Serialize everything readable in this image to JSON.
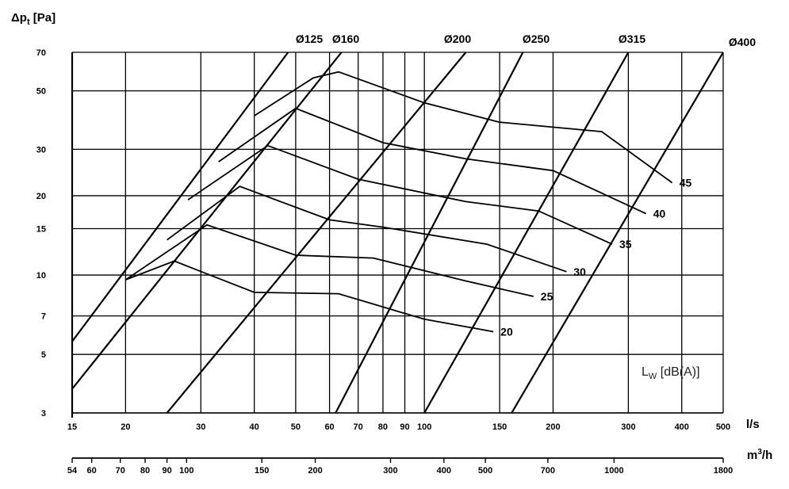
{
  "chart_data": {
    "type": "line",
    "title": "",
    "ylabel": "Δp",
    "ylabel_sub": "t",
    "ylabel_unit": "[Pa]",
    "xlabel": "l/s",
    "x2label": "m",
    "x2label_sup": "3",
    "x2label_unit": "/h",
    "xscale": "log",
    "yscale": "log",
    "xlim": [
      15,
      500
    ],
    "ylim": [
      3,
      70
    ],
    "grid": true,
    "x_ticks": [
      15,
      20,
      30,
      40,
      50,
      60,
      70,
      80,
      90,
      100,
      150,
      200,
      300,
      400,
      500
    ],
    "x2_ticks": [
      54,
      60,
      70,
      80,
      90,
      100,
      150,
      200,
      300,
      400,
      500,
      700,
      1000,
      1800
    ],
    "y_ticks": [
      3,
      5,
      7,
      10,
      15,
      20,
      30,
      50,
      70
    ],
    "note": "L",
    "note_sub": "W",
    "note_unit": "[dB(A)]",
    "duct_lines": [
      {
        "name": "Ø125",
        "points": [
          [
            15,
            5.6
          ],
          [
            48,
            70
          ]
        ]
      },
      {
        "name": "Ø160",
        "points": [
          [
            15,
            3.7
          ],
          [
            64,
            70
          ]
        ]
      },
      {
        "name": "Ø200",
        "points": [
          [
            25,
            3.0
          ],
          [
            125,
            70
          ]
        ]
      },
      {
        "name": "Ø250",
        "points": [
          [
            62,
            3.0
          ],
          [
            170,
            70
          ]
        ]
      },
      {
        "name": "Ø315",
        "points": [
          [
            100,
            3.0
          ],
          [
            300,
            70
          ]
        ]
      },
      {
        "name": "Ø400",
        "points": [
          [
            160,
            3.0
          ],
          [
            500,
            70
          ]
        ]
      }
    ],
    "series": [
      {
        "name": "20",
        "points": [
          [
            20,
            9.6
          ],
          [
            26,
            11.3
          ],
          [
            40,
            8.6
          ],
          [
            63,
            8.5
          ],
          [
            100,
            6.8
          ],
          [
            145,
            6.1
          ]
        ]
      },
      {
        "name": "25",
        "points": [
          [
            20,
            9.6
          ],
          [
            31,
            15.5
          ],
          [
            50,
            11.9
          ],
          [
            76,
            11.6
          ],
          [
            125,
            9.5
          ],
          [
            180,
            8.3
          ]
        ]
      },
      {
        "name": "30",
        "points": [
          [
            25,
            13.6
          ],
          [
            37,
            21.7
          ],
          [
            60,
            16.2
          ],
          [
            80,
            15.2
          ],
          [
            140,
            13.1
          ],
          [
            215,
            10.3
          ]
        ]
      },
      {
        "name": "35",
        "points": [
          [
            28,
            19.3
          ],
          [
            43,
            31.0
          ],
          [
            70,
            23.1
          ],
          [
            125,
            19.0
          ],
          [
            185,
            17.5
          ],
          [
            275,
            13.1
          ]
        ]
      },
      {
        "name": "40",
        "points": [
          [
            33,
            26.9
          ],
          [
            50,
            42.9
          ],
          [
            80,
            31.8
          ],
          [
            125,
            27.6
          ],
          [
            200,
            24.9
          ],
          [
            330,
            17.1
          ]
        ]
      },
      {
        "name": "45",
        "points": [
          [
            40,
            40.2
          ],
          [
            55,
            56.0
          ],
          [
            63,
            59.0
          ],
          [
            100,
            45.0
          ],
          [
            150,
            38.0
          ],
          [
            260,
            35.0
          ],
          [
            380,
            22.4
          ]
        ]
      }
    ]
  }
}
